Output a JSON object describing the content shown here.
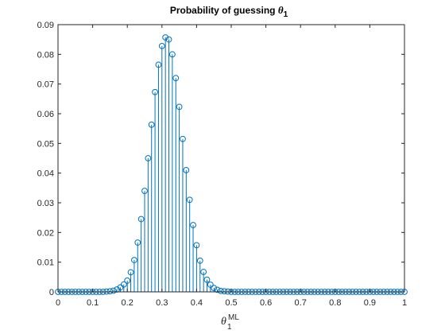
{
  "chart_data": {
    "type": "stem",
    "title": {
      "prefix": "Probability of guessing ",
      "symbol": "θ",
      "subscript": "1"
    },
    "xlabel": {
      "symbol": "θ",
      "subscript": "1",
      "superscript": "ML"
    },
    "xlim": [
      0,
      1
    ],
    "ylim": [
      0,
      0.09
    ],
    "xticks": [
      "0",
      "0.1",
      "0.2",
      "0.3",
      "0.4",
      "0.5",
      "0.6",
      "0.7",
      "0.8",
      "0.9",
      "1"
    ],
    "yticks": [
      "0",
      "0.01",
      "0.02",
      "0.03",
      "0.04",
      "0.05",
      "0.06",
      "0.07",
      "0.08",
      "0.09"
    ],
    "grid": false,
    "series": [
      {
        "color": "#0072BD",
        "marker": "circle",
        "x": [
          0,
          0.01,
          0.02,
          0.03,
          0.04,
          0.05,
          0.06,
          0.07,
          0.08,
          0.09,
          0.1,
          0.11,
          0.12,
          0.13,
          0.14,
          0.15,
          0.16,
          0.17,
          0.18,
          0.19,
          0.2,
          0.21,
          0.22,
          0.23,
          0.24,
          0.25,
          0.26,
          0.27,
          0.28,
          0.29,
          0.3,
          0.31,
          0.32,
          0.33,
          0.34,
          0.35,
          0.36,
          0.37,
          0.38,
          0.39,
          0.4,
          0.41,
          0.42,
          0.43,
          0.44,
          0.45,
          0.46,
          0.47,
          0.48,
          0.49,
          0.5,
          0.51,
          0.52,
          0.53,
          0.54,
          0.55,
          0.56,
          0.57,
          0.58,
          0.59,
          0.6,
          0.61,
          0.62,
          0.63,
          0.64,
          0.65,
          0.66,
          0.67,
          0.68,
          0.69,
          0.7,
          0.71,
          0.72,
          0.73,
          0.74,
          0.75,
          0.76,
          0.77,
          0.78,
          0.79,
          0.8,
          0.81,
          0.82,
          0.83,
          0.84,
          0.85,
          0.86,
          0.87,
          0.88,
          0.89,
          0.9,
          0.91,
          0.92,
          0.93,
          0.94,
          0.95,
          0.96,
          0.97,
          0.98,
          0.99,
          1
        ],
        "y": [
          0,
          0,
          0,
          0,
          0,
          0,
          0,
          0,
          0,
          0,
          0,
          0,
          0,
          0,
          0.0001,
          0.0002,
          0.0004,
          0.0008,
          0.0015,
          0.0025,
          0.0038,
          0.0066,
          0.0107,
          0.0166,
          0.0245,
          0.034,
          0.045,
          0.0563,
          0.0673,
          0.0765,
          0.0828,
          0.0857,
          0.085,
          0.08,
          0.072,
          0.0623,
          0.0515,
          0.041,
          0.031,
          0.0225,
          0.0157,
          0.0105,
          0.0067,
          0.0041,
          0.0024,
          0.0013,
          0.0007,
          0.0003,
          0.0002,
          0.0001,
          0,
          0,
          0,
          0,
          0,
          0,
          0,
          0,
          0,
          0,
          0,
          0,
          0,
          0,
          0,
          0,
          0,
          0,
          0,
          0,
          0,
          0,
          0,
          0,
          0,
          0,
          0,
          0,
          0,
          0,
          0,
          0,
          0,
          0,
          0,
          0,
          0,
          0,
          0,
          0,
          0,
          0,
          0,
          0,
          0,
          0,
          0,
          0,
          0,
          0,
          0
        ]
      }
    ]
  }
}
